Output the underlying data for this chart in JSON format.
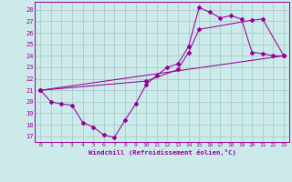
{
  "background_color": "#cceaea",
  "grid_color": "#aacccc",
  "line_color": "#990099",
  "xlim": [
    -0.5,
    23.5
  ],
  "ylim": [
    16.5,
    28.7
  ],
  "yticks": [
    17,
    18,
    19,
    20,
    21,
    22,
    23,
    24,
    25,
    26,
    27,
    28
  ],
  "xticks": [
    0,
    1,
    2,
    3,
    4,
    5,
    6,
    7,
    8,
    9,
    10,
    11,
    12,
    13,
    14,
    15,
    16,
    17,
    18,
    19,
    20,
    21,
    22,
    23
  ],
  "xlabel": "Windchill (Refroidissement éolien,°C)",
  "line1_x": [
    0,
    1,
    2,
    3,
    4,
    5,
    6,
    7,
    8,
    9,
    10,
    11,
    12,
    13,
    14,
    15,
    16,
    17,
    18,
    19,
    20,
    21,
    22,
    23
  ],
  "line1_y": [
    21.0,
    20.0,
    19.8,
    19.7,
    18.2,
    17.8,
    17.1,
    16.9,
    18.4,
    19.8,
    21.5,
    22.3,
    23.0,
    23.3,
    24.8,
    28.2,
    27.8,
    27.3,
    27.5,
    27.2,
    24.3,
    24.2,
    24.0,
    24.0
  ],
  "line2_x": [
    0,
    23
  ],
  "line2_y": [
    21.0,
    24.0
  ],
  "line3_x": [
    0,
    10,
    13,
    14,
    15,
    20,
    21,
    23
  ],
  "line3_y": [
    21.0,
    21.8,
    22.8,
    24.3,
    26.3,
    27.1,
    27.2,
    24.0
  ]
}
